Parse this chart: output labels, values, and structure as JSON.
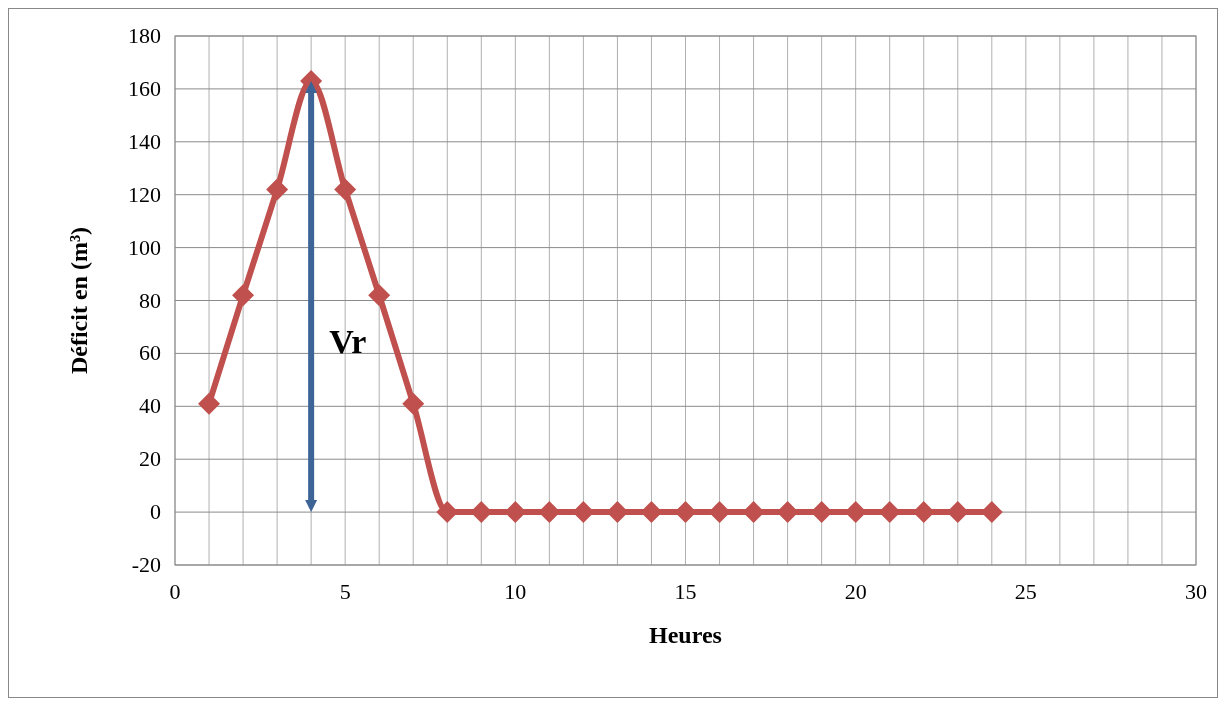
{
  "chart_data": {
    "type": "line",
    "xlabel": "Heures",
    "ylabel": "Déficit en (m³)",
    "x": [
      1,
      2,
      3,
      4,
      5,
      6,
      7,
      8,
      9,
      10,
      11,
      12,
      13,
      14,
      15,
      16,
      17,
      18,
      19,
      20,
      21,
      22,
      23,
      24
    ],
    "series": [
      {
        "color": "#c0504d",
        "values": [
          41,
          82,
          122,
          163,
          122,
          82,
          41,
          0,
          0,
          0,
          0,
          0,
          0,
          0,
          0,
          0,
          0,
          0,
          0,
          0,
          0,
          0,
          0,
          0
        ]
      }
    ],
    "xlim": [
      0,
      30
    ],
    "xticks": [
      0,
      {
        "value": 1,
        "label": null
      },
      {
        "value": 2,
        "label": null
      },
      {
        "value": 3,
        "label": null
      },
      {
        "value": 4,
        "label": null
      },
      5,
      {
        "value": 6,
        "label": null
      },
      {
        "value": 7,
        "label": null
      },
      {
        "value": 8,
        "label": null
      },
      {
        "value": 9,
        "label": null
      },
      10,
      {
        "value": 11,
        "label": null
      },
      {
        "value": 12,
        "label": null
      },
      {
        "value": 13,
        "label": null
      },
      {
        "value": 14,
        "label": null
      },
      15,
      {
        "value": 16,
        "label": null
      },
      {
        "value": 17,
        "label": null
      },
      {
        "value": 18,
        "label": null
      },
      {
        "value": 19,
        "label": null
      },
      20,
      {
        "value": 21,
        "label": null
      },
      {
        "value": 22,
        "label": null
      },
      {
        "value": 23,
        "label": null
      },
      {
        "value": 24,
        "label": null
      },
      25,
      {
        "value": 26,
        "label": null
      },
      {
        "value": 27,
        "label": null
      },
      {
        "value": 28,
        "label": null
      },
      {
        "value": 29,
        "label": null
      },
      30
    ],
    "ylim": [
      -20,
      180
    ],
    "yticks": [
      -20,
      0,
      20,
      40,
      60,
      80,
      100,
      120,
      140,
      160,
      180
    ],
    "grid": true,
    "marker": "diamond",
    "line_style": "solid",
    "annotations": [
      "Vr"
    ]
  }
}
